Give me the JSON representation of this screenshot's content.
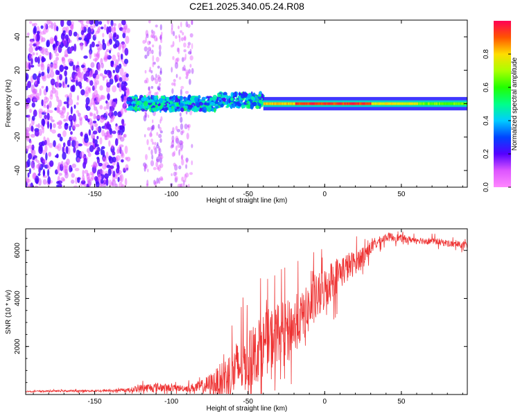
{
  "title": "C2E1.2025.340.05.24.R08",
  "chart_data": [
    {
      "type": "heatmap",
      "xlabel": "Height of straight line (km)",
      "ylabel": "Frequency (Hz)",
      "xlim": [
        -195,
        93
      ],
      "ylim": [
        -50,
        50
      ],
      "xticks": [
        -150,
        -100,
        -50,
        0,
        50
      ],
      "xtick_labels": [
        "-150",
        "-100",
        "-50",
        "0",
        "50"
      ],
      "yticks": [
        -40,
        -20,
        0,
        20,
        40
      ],
      "ytick_labels": [
        "-40",
        "-20",
        "0",
        "20",
        "40"
      ],
      "colorbar": {
        "label": "Normalized spectral amplitude",
        "range": [
          0,
          1
        ],
        "ticks": [
          0,
          0.2,
          0.4,
          0.6,
          0.8
        ],
        "tick_labels": [
          "0.0",
          "0.2",
          "0.4",
          "0.6",
          "0.8"
        ]
      },
      "regions": [
        {
          "x": [
            -195,
            -128
          ],
          "freq_spread": 50,
          "level": 0.2,
          "description": "broadband noise"
        },
        {
          "x": [
            -128,
            -85
          ],
          "freq_spread": 50,
          "level": 0.1,
          "description": "sparse noise"
        },
        {
          "x": [
            -128,
            -40
          ],
          "freq_center": 0,
          "freq_width": 8,
          "level": 0.45
        },
        {
          "x": [
            -40,
            93
          ],
          "freq_center": 0,
          "freq_width": 3,
          "level": 0.75
        }
      ]
    },
    {
      "type": "line",
      "xlabel": "Height of straight line (km)",
      "ylabel": "SNR (10 * v/v)",
      "xlim": [
        -195,
        93
      ],
      "ylim": [
        0,
        6900
      ],
      "xticks": [
        -150,
        -100,
        -50,
        0,
        50
      ],
      "xtick_labels": [
        "-150",
        "-100",
        "-50",
        "0",
        "50"
      ],
      "yticks": [
        2000,
        4000,
        6000
      ],
      "ytick_labels": [
        "2000",
        "4000",
        "6000"
      ],
      "series": [
        {
          "name": "SNR",
          "color": "#ee3333",
          "x": [
            -195,
            -180,
            -160,
            -140,
            -130,
            -120,
            -110,
            -100,
            -90,
            -80,
            -70,
            -60,
            -55,
            -50,
            -45,
            -40,
            -35,
            -30,
            -25,
            -20,
            -15,
            -10,
            -5,
            0,
            5,
            10,
            15,
            20,
            25,
            30,
            35,
            40,
            45,
            50,
            55,
            60,
            65,
            70,
            75,
            80,
            85,
            93
          ],
          "y": [
            130,
            140,
            150,
            160,
            170,
            250,
            300,
            270,
            260,
            320,
            500,
            900,
            1200,
            1400,
            1700,
            2100,
            2300,
            2600,
            2700,
            2900,
            3200,
            3600,
            4000,
            4400,
            4800,
            5100,
            5300,
            5500,
            5800,
            6100,
            6350,
            6550,
            6550,
            6500,
            6450,
            6450,
            6400,
            6400,
            6350,
            6300,
            6250,
            6200
          ],
          "noise_amplitude": [
            40,
            50,
            60,
            70,
            80,
            250,
            280,
            200,
            200,
            400,
            900,
            1600,
            1800,
            1700,
            1800,
            1900,
            1900,
            1700,
            1700,
            1700,
            1500,
            1500,
            1400,
            1300,
            1200,
            1000,
            900,
            700,
            600,
            400,
            300,
            250,
            250,
            220,
            200,
            200,
            200,
            200,
            200,
            200,
            200,
            200
          ]
        }
      ]
    }
  ]
}
